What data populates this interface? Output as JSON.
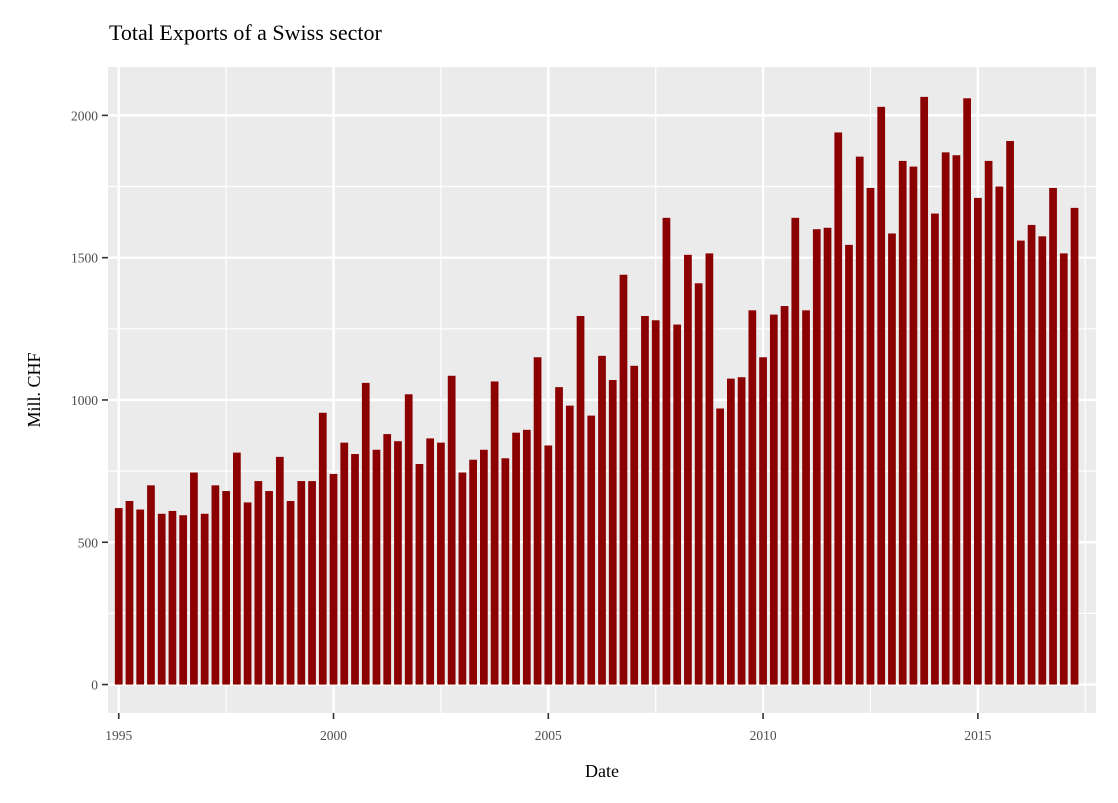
{
  "chart_data": {
    "type": "bar",
    "title": "Total Exports of a Swiss sector",
    "xlabel": "Date",
    "ylabel": "Mill. CHF",
    "x_start_year": 1995,
    "x_step_years": 0.25,
    "xlim": [
      1994.75,
      2017.75
    ],
    "ylim": [
      -100,
      2170
    ],
    "x_ticks": [
      1995,
      2000,
      2005,
      2010,
      2015
    ],
    "y_ticks": [
      0,
      500,
      1000,
      1500,
      2000
    ],
    "grid": true,
    "legend": "none",
    "bar_color": "#8b0000",
    "panel_color": "#ebebeb",
    "grid_color": "#ffffff",
    "values": [
      620,
      645,
      615,
      700,
      600,
      610,
      595,
      745,
      600,
      700,
      680,
      815,
      640,
      715,
      680,
      800,
      645,
      715,
      715,
      955,
      740,
      850,
      810,
      1060,
      825,
      880,
      855,
      1020,
      775,
      865,
      850,
      1085,
      745,
      790,
      825,
      1065,
      795,
      885,
      895,
      1150,
      840,
      1045,
      980,
      1295,
      945,
      1155,
      1070,
      1440,
      1120,
      1295,
      1280,
      1640,
      1265,
      1510,
      1410,
      1515,
      970,
      1075,
      1080,
      1315,
      1150,
      1300,
      1330,
      1640,
      1315,
      1600,
      1605,
      1940,
      1545,
      1855,
      1745,
      2030,
      1585,
      1840,
      1820,
      2065,
      1655,
      1870,
      1860,
      2060,
      1710,
      1840,
      1750,
      1910,
      1560,
      1615,
      1575,
      1745,
      1515,
      1675
    ]
  }
}
